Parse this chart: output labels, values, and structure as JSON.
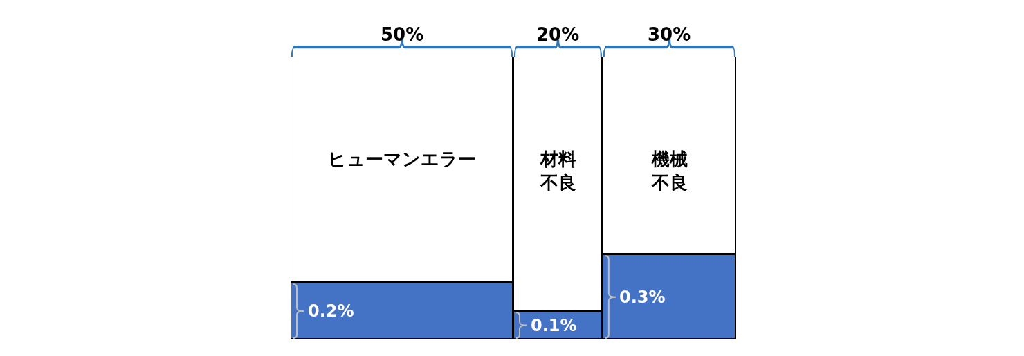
{
  "chart_data": {
    "type": "other",
    "categories": [
      "ヒューマンエラー",
      "材料不良",
      "機械不良"
    ],
    "values": [
      50,
      20,
      30
    ],
    "value_labels": [
      "50%",
      "20%",
      "30%"
    ],
    "series": [
      {
        "color": "#4472c4",
        "values": [
          0.2,
          0.1,
          0.3
        ],
        "value_labels": [
          "0.2%",
          "0.1%",
          "0.3%"
        ]
      }
    ]
  }
}
